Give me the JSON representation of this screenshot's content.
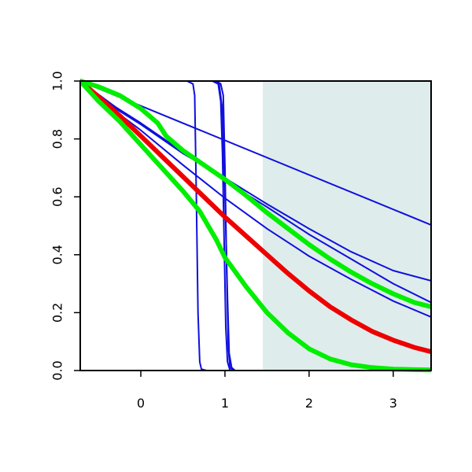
{
  "chart_data": {
    "type": "line",
    "title": "",
    "xlabel": "",
    "ylabel": "",
    "xlim": [
      -0.72,
      3.45
    ],
    "ylim": [
      0,
      1
    ],
    "grid": false,
    "shaded_region": {
      "x_from": 1.45,
      "x_to": 3.45,
      "color": "#dfecec"
    },
    "x_ticks": [
      0,
      1,
      2,
      3
    ],
    "x_tick_labels": [
      "0",
      "1",
      "2",
      "3"
    ],
    "y_ticks": [
      0,
      0.2,
      0.4,
      0.6,
      0.8,
      1
    ],
    "y_tick_labels": [
      "0.0",
      "0.2",
      "0.4",
      "0.6",
      "0.8",
      "1.0"
    ],
    "series": [
      {
        "color": "#1010dd",
        "width": 2,
        "x": [
          -0.72,
          3.45
        ],
        "y": [
          1.0,
          0.503
        ]
      },
      {
        "color": "#1010dd",
        "width": 2,
        "x": [
          -0.72,
          -0.3,
          0.0,
          0.5,
          1.0,
          1.5,
          2.0,
          2.5,
          3.0,
          3.45
        ],
        "y": [
          1.0,
          0.905,
          0.85,
          0.75,
          0.665,
          0.575,
          0.49,
          0.41,
          0.345,
          0.31
        ]
      },
      {
        "color": "#1010dd",
        "width": 2,
        "x": [
          -0.72,
          -0.3,
          0.0,
          0.5,
          1.0,
          1.5,
          2.0,
          2.5,
          3.0,
          3.45
        ],
        "y": [
          1.0,
          0.895,
          0.83,
          0.71,
          0.595,
          0.49,
          0.395,
          0.315,
          0.24,
          0.185
        ]
      },
      {
        "color": "#1010dd",
        "width": 2,
        "x": [
          -0.72,
          -0.3,
          0.0,
          0.5,
          1.0,
          1.5,
          2.0,
          2.5,
          3.0,
          3.45
        ],
        "y": [
          1.0,
          0.91,
          0.855,
          0.755,
          0.655,
          0.565,
          0.47,
          0.385,
          0.3,
          0.235
        ]
      },
      {
        "color": "#1010dd",
        "width": 2,
        "x": [
          -0.72,
          0.55,
          0.62,
          0.64,
          0.66,
          0.68,
          0.7,
          0.72,
          0.78,
          3.45
        ],
        "y": [
          1.0,
          1.0,
          0.99,
          0.95,
          0.6,
          0.2,
          0.03,
          0.005,
          0.0,
          0.0
        ]
      },
      {
        "color": "#1010dd",
        "width": 2,
        "x": [
          -0.72,
          0.85,
          0.92,
          0.95,
          0.97,
          0.99,
          1.01,
          1.03,
          1.06,
          3.45
        ],
        "y": [
          1.0,
          1.0,
          0.99,
          0.93,
          0.75,
          0.45,
          0.15,
          0.03,
          0.0,
          0.0
        ]
      },
      {
        "color": "#1010dd",
        "width": 2,
        "x": [
          -0.72,
          0.9,
          0.95,
          0.98,
          1.0,
          1.02,
          1.04,
          1.06,
          1.1,
          3.45
        ],
        "y": [
          1.0,
          1.0,
          0.99,
          0.95,
          0.7,
          0.35,
          0.08,
          0.01,
          0.0,
          0.0
        ]
      },
      {
        "color": "#1010dd",
        "width": 2,
        "x": [
          -0.72,
          0.88,
          0.93,
          0.97,
          1.0,
          1.03,
          1.05,
          1.08,
          1.12,
          3.45
        ],
        "y": [
          1.0,
          1.0,
          0.99,
          0.9,
          0.6,
          0.25,
          0.06,
          0.01,
          0.0,
          0.0
        ]
      },
      {
        "color": "#ee0000",
        "width": 6,
        "x": [
          -0.72,
          -0.5,
          -0.25,
          0.0,
          0.25,
          0.5,
          0.75,
          1.0,
          1.25,
          1.5,
          1.75,
          2.0,
          2.25,
          2.5,
          2.75,
          3.0,
          3.25,
          3.45
        ],
        "y": [
          1.0,
          0.945,
          0.88,
          0.81,
          0.74,
          0.67,
          0.6,
          0.53,
          0.465,
          0.4,
          0.335,
          0.275,
          0.22,
          0.175,
          0.135,
          0.105,
          0.08,
          0.065
        ]
      },
      {
        "color": "#00ee00",
        "width": 6,
        "x": [
          -0.72,
          -0.5,
          -0.25,
          0.0,
          0.2,
          0.3,
          0.5,
          0.75,
          1.0,
          1.25,
          1.5,
          1.75,
          2.0,
          2.25,
          2.5,
          2.75,
          3.0,
          3.25,
          3.45
        ],
        "y": [
          1.0,
          0.98,
          0.95,
          0.905,
          0.855,
          0.81,
          0.76,
          0.71,
          0.66,
          0.605,
          0.545,
          0.49,
          0.435,
          0.385,
          0.34,
          0.3,
          0.265,
          0.235,
          0.22
        ]
      },
      {
        "color": "#00ee00",
        "width": 6,
        "x": [
          -0.72,
          -0.5,
          -0.25,
          0.0,
          0.25,
          0.5,
          0.7,
          0.9,
          1.0,
          1.25,
          1.5,
          1.75,
          2.0,
          2.25,
          2.5,
          2.75,
          3.0,
          3.25,
          3.45
        ],
        "y": [
          1.0,
          0.93,
          0.86,
          0.78,
          0.7,
          0.62,
          0.55,
          0.45,
          0.39,
          0.29,
          0.2,
          0.13,
          0.075,
          0.04,
          0.02,
          0.01,
          0.005,
          0.003,
          0.002
        ]
      }
    ]
  }
}
